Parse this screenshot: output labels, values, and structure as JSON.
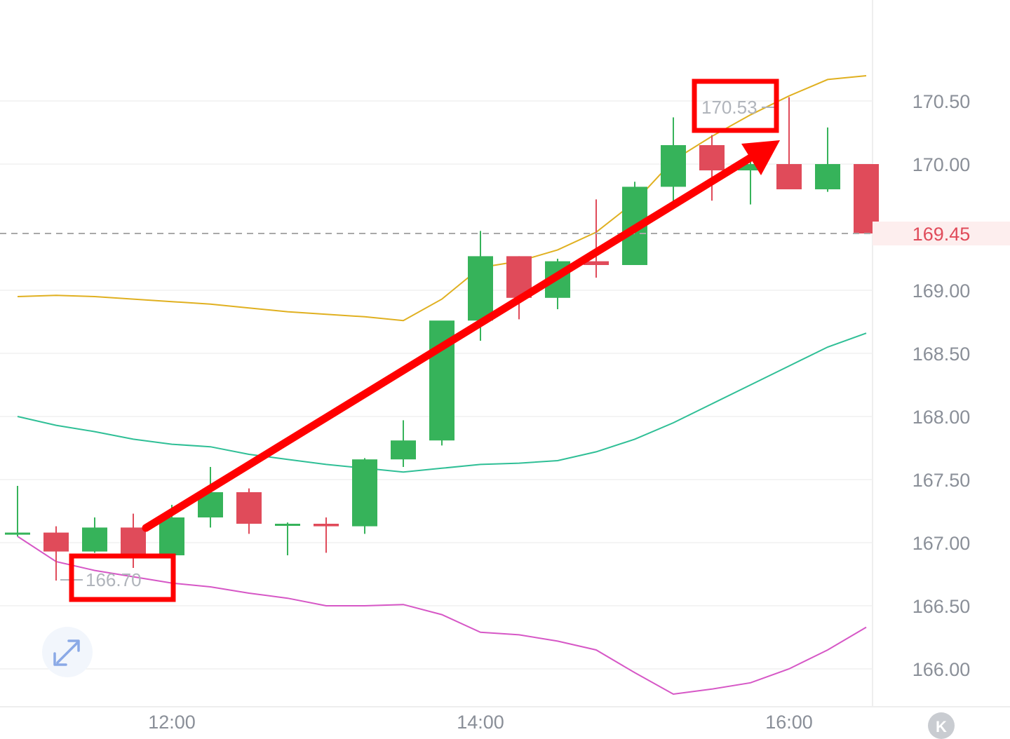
{
  "chart_data": {
    "type": "candlestick",
    "x_labels": [
      "12:00",
      "14:00",
      "16:00"
    ],
    "x_label_index": [
      4,
      12,
      20
    ],
    "y_ticks": [
      "170.50",
      "170.00",
      "169.00",
      "168.50",
      "168.00",
      "167.50",
      "167.00",
      "166.50",
      "166.00"
    ],
    "ylim": [
      165.7,
      171.3
    ],
    "current_price": "169.45",
    "annotations": {
      "low_label": "166.70",
      "high_label": "170.53"
    },
    "candles": [
      {
        "o": 167.08,
        "h": 167.45,
        "l": 167.05,
        "c": 167.08
      },
      {
        "o": 167.08,
        "h": 167.13,
        "l": 166.7,
        "c": 166.93
      },
      {
        "o": 166.93,
        "h": 167.2,
        "l": 166.92,
        "c": 167.12
      },
      {
        "o": 167.12,
        "h": 167.23,
        "l": 166.8,
        "c": 166.9
      },
      {
        "o": 166.9,
        "h": 167.3,
        "l": 166.9,
        "c": 167.2
      },
      {
        "o": 167.2,
        "h": 167.6,
        "l": 167.12,
        "c": 167.4
      },
      {
        "o": 167.4,
        "h": 167.43,
        "l": 167.07,
        "c": 167.15
      },
      {
        "o": 167.15,
        "h": 167.16,
        "l": 166.9,
        "c": 167.15
      },
      {
        "o": 167.15,
        "h": 167.2,
        "l": 166.92,
        "c": 167.13
      },
      {
        "o": 167.13,
        "h": 167.67,
        "l": 167.07,
        "c": 167.66
      },
      {
        "o": 167.66,
        "h": 167.97,
        "l": 167.6,
        "c": 167.81
      },
      {
        "o": 167.81,
        "h": 168.75,
        "l": 167.77,
        "c": 168.76
      },
      {
        "o": 168.76,
        "h": 169.47,
        "l": 168.6,
        "c": 169.27
      },
      {
        "o": 169.27,
        "h": 169.27,
        "l": 168.77,
        "c": 168.94
      },
      {
        "o": 168.94,
        "h": 169.25,
        "l": 168.85,
        "c": 169.23
      },
      {
        "o": 169.23,
        "h": 169.72,
        "l": 169.1,
        "c": 169.2
      },
      {
        "o": 169.2,
        "h": 169.86,
        "l": 169.2,
        "c": 169.82
      },
      {
        "o": 169.82,
        "h": 170.37,
        "l": 169.68,
        "c": 170.15
      },
      {
        "o": 170.15,
        "h": 170.23,
        "l": 169.71,
        "c": 169.95
      },
      {
        "o": 169.95,
        "h": 170.05,
        "l": 169.68,
        "c": 170.0
      },
      {
        "o": 170.0,
        "h": 170.53,
        "l": 169.8,
        "c": 169.8
      },
      {
        "o": 169.8,
        "h": 170.29,
        "l": 169.78,
        "c": 170.0
      },
      {
        "o": 170.0,
        "h": 170.0,
        "l": 169.45,
        "c": 169.45
      }
    ],
    "bands": [
      {
        "name": "upper",
        "color": "#e0b020",
        "values": [
          168.95,
          168.96,
          168.95,
          168.93,
          168.91,
          168.89,
          168.86,
          168.83,
          168.81,
          168.79,
          168.76,
          168.93,
          169.18,
          169.23,
          169.32,
          169.46,
          169.7,
          170.03,
          170.22,
          170.39,
          170.54,
          170.67,
          170.7
        ]
      },
      {
        "name": "middle",
        "color": "#2fbf96",
        "values": [
          168.0,
          167.93,
          167.88,
          167.82,
          167.78,
          167.76,
          167.7,
          167.66,
          167.62,
          167.59,
          167.56,
          167.59,
          167.62,
          167.63,
          167.65,
          167.72,
          167.82,
          167.95,
          168.1,
          168.25,
          168.4,
          168.55,
          168.66
        ]
      },
      {
        "name": "lower",
        "color": "#d657c6",
        "values": [
          167.05,
          166.85,
          166.78,
          166.73,
          166.68,
          166.65,
          166.6,
          166.56,
          166.5,
          166.5,
          166.51,
          166.43,
          166.29,
          166.27,
          166.22,
          166.15,
          165.97,
          165.8,
          165.84,
          165.89,
          166.0,
          166.15,
          166.33
        ]
      }
    ],
    "grid": true
  },
  "colors": {
    "up": "#36b35a",
    "down": "#e04b5a",
    "highlight": "#ff0000",
    "axis_text": "#8a8f98",
    "current": "#e04b5a"
  },
  "controls": {
    "expand_icon": "expand-icon",
    "k_icon_text": "K"
  }
}
